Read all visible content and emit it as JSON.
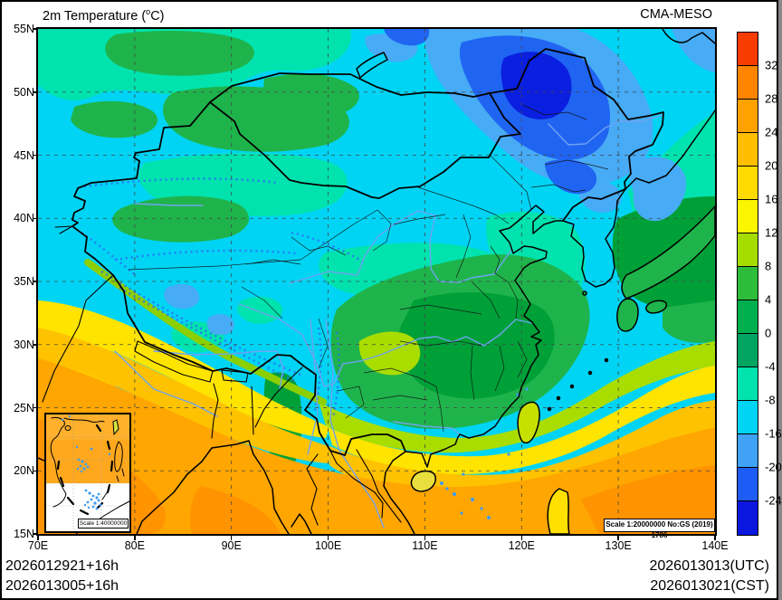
{
  "title": {
    "prefix": "2m Temperature (",
    "sup": "o",
    "suffix": "C)"
  },
  "model": "CMA-MESO",
  "axes": {
    "lat": [
      "55N",
      "50N",
      "45N",
      "40N",
      "35N",
      "30N",
      "25N",
      "20N",
      "15N"
    ],
    "lon": [
      "70E",
      "80E",
      "90E",
      "100E",
      "110E",
      "120E",
      "130E",
      "140E"
    ]
  },
  "colorbar": {
    "labels": [
      "32",
      "28",
      "24",
      "20",
      "16",
      "12",
      "8",
      "4",
      "0",
      "-4",
      "-8",
      "-16",
      "-20",
      "-24"
    ],
    "colors": [
      "#F83C00",
      "#FF8400",
      "#FFA200",
      "#FFBE00",
      "#FFDA00",
      "#FCF500",
      "#A6DC00",
      "#2EBD3A",
      "#00B04E",
      "#00A562",
      "#00E3AE",
      "#00D4F4",
      "#3FA2F4",
      "#1E5DF5",
      "#0B16DF"
    ]
  },
  "footer": {
    "left1": "2026012921+16h",
    "left2": "2026013005+16h",
    "right1": "2026013013(UTC)",
    "right2": "2026013021(CST)"
  },
  "scale_main": "Scale 1:20000000 No:GS (2019) 1786",
  "scale_inset": "Scale 1:40000000"
}
